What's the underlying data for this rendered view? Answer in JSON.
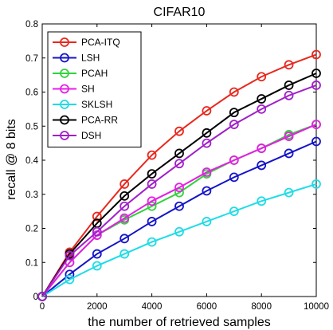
{
  "chart_data": {
    "type": "line",
    "title": "CIFAR10",
    "xlabel": "the number of retrieved samples",
    "ylabel": "recall @ 8 bits",
    "xlim": [
      0,
      10000
    ],
    "ylim": [
      0,
      0.8
    ],
    "x_ticks": [
      0,
      2000,
      4000,
      6000,
      8000,
      10000
    ],
    "y_ticks": [
      0,
      0.1,
      0.2,
      0.3,
      0.4,
      0.5,
      0.6,
      0.7,
      0.8
    ],
    "grid": false,
    "legend_position": "top-left",
    "x": [
      0,
      1000,
      2000,
      3000,
      4000,
      5000,
      6000,
      7000,
      8000,
      9000,
      10000
    ],
    "series": [
      {
        "name": "PCA-ITQ",
        "color": "#e8281e",
        "values": [
          0,
          0.13,
          0.235,
          0.33,
          0.415,
          0.485,
          0.545,
          0.6,
          0.645,
          0.68,
          0.71
        ]
      },
      {
        "name": "LSH",
        "color": "#1414c8",
        "values": [
          0,
          0.065,
          0.125,
          0.17,
          0.22,
          0.265,
          0.31,
          0.35,
          0.385,
          0.42,
          0.455
        ]
      },
      {
        "name": "PCAH",
        "color": "#32d23c",
        "values": [
          0,
          0.1,
          0.18,
          0.225,
          0.265,
          0.305,
          0.36,
          0.4,
          0.435,
          0.475,
          0.505
        ]
      },
      {
        "name": "SH",
        "color": "#e61ee6",
        "values": [
          0,
          0.1,
          0.18,
          0.23,
          0.28,
          0.32,
          0.365,
          0.4,
          0.435,
          0.47,
          0.505
        ]
      },
      {
        "name": "SKLSH",
        "color": "#1edce6",
        "values": [
          0,
          0.05,
          0.09,
          0.125,
          0.16,
          0.19,
          0.22,
          0.25,
          0.28,
          0.305,
          0.33
        ]
      },
      {
        "name": "PCA-RR",
        "color": "#000000",
        "values": [
          0,
          0.125,
          0.215,
          0.295,
          0.36,
          0.42,
          0.48,
          0.54,
          0.58,
          0.62,
          0.655
        ]
      },
      {
        "name": "DSH",
        "color": "#a020c8",
        "values": [
          0,
          0.12,
          0.19,
          0.265,
          0.33,
          0.39,
          0.45,
          0.505,
          0.55,
          0.59,
          0.62
        ]
      }
    ]
  }
}
